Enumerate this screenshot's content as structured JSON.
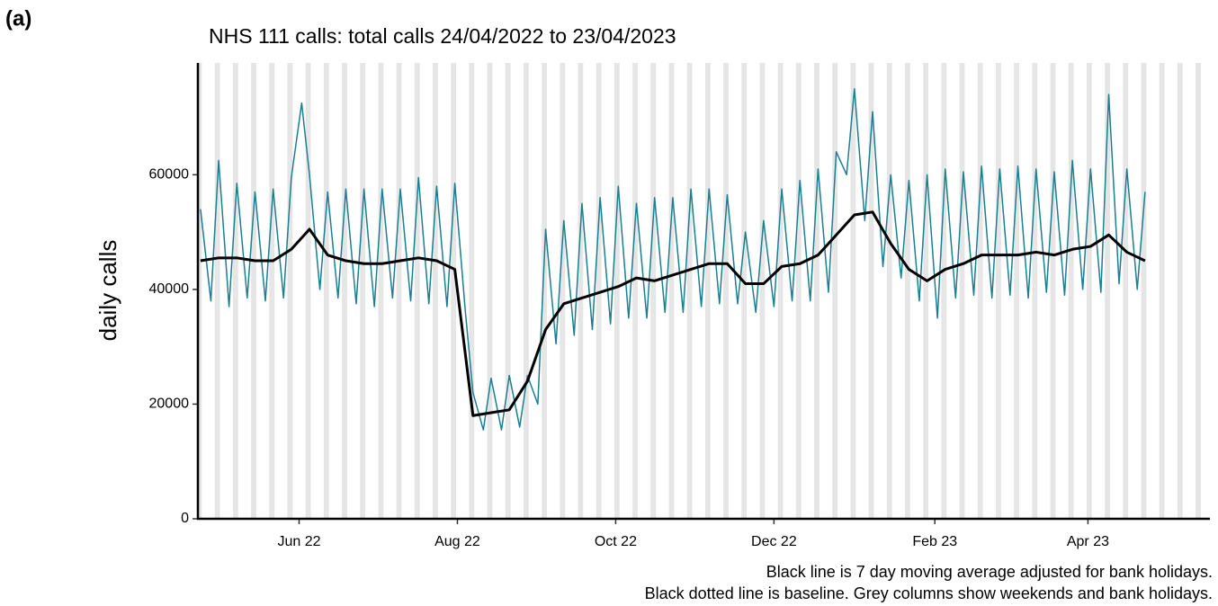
{
  "panel_label": "(a)",
  "chart_data": {
    "type": "line",
    "title": "NHS 111 calls: total calls 24/04/2022 to 23/04/2023",
    "ylabel": "daily calls",
    "caption": [
      "Black line is 7 day moving average adjusted for bank holidays.",
      "Black dotted line is baseline. Grey columns show weekends and bank holidays."
    ],
    "grid": false,
    "shade_weekends": true,
    "xlim": [
      "2022-04-23",
      "2023-05-18"
    ],
    "xticks": [
      {
        "value": "2022-06-01",
        "label": "Jun 22"
      },
      {
        "value": "2022-08-01",
        "label": "Aug 22"
      },
      {
        "value": "2022-10-01",
        "label": "Oct 22"
      },
      {
        "value": "2022-12-01",
        "label": "Dec 22"
      },
      {
        "value": "2023-02-01",
        "label": "Feb 23"
      },
      {
        "value": "2023-04-01",
        "label": "Apr 23"
      }
    ],
    "ylim": [
      0,
      79500
    ],
    "yticks": [
      0,
      20000,
      40000,
      60000
    ],
    "series": [
      {
        "color": "#1a7f92",
        "width": 1.5,
        "x": [
          "2022-04-24",
          "2022-04-28",
          "2022-05-01",
          "2022-05-05",
          "2022-05-08",
          "2022-05-12",
          "2022-05-15",
          "2022-05-19",
          "2022-05-22",
          "2022-05-26",
          "2022-05-29",
          "2022-06-02",
          "2022-06-05",
          "2022-06-09",
          "2022-06-12",
          "2022-06-16",
          "2022-06-19",
          "2022-06-23",
          "2022-06-26",
          "2022-06-30",
          "2022-07-03",
          "2022-07-07",
          "2022-07-10",
          "2022-07-14",
          "2022-07-17",
          "2022-07-21",
          "2022-07-24",
          "2022-07-28",
          "2022-07-31",
          "2022-08-04",
          "2022-08-07",
          "2022-08-11",
          "2022-08-14",
          "2022-08-18",
          "2022-08-21",
          "2022-08-25",
          "2022-08-28",
          "2022-09-01",
          "2022-09-04",
          "2022-09-08",
          "2022-09-11",
          "2022-09-15",
          "2022-09-18",
          "2022-09-22",
          "2022-09-25",
          "2022-09-29",
          "2022-10-02",
          "2022-10-06",
          "2022-10-09",
          "2022-10-13",
          "2022-10-16",
          "2022-10-20",
          "2022-10-23",
          "2022-10-27",
          "2022-10-30",
          "2022-11-03",
          "2022-11-06",
          "2022-11-10",
          "2022-11-13",
          "2022-11-17",
          "2022-11-20",
          "2022-11-24",
          "2022-11-27",
          "2022-12-01",
          "2022-12-04",
          "2022-12-08",
          "2022-12-11",
          "2022-12-15",
          "2022-12-18",
          "2022-12-22",
          "2022-12-25",
          "2022-12-29",
          "2023-01-01",
          "2023-01-05",
          "2023-01-08",
          "2023-01-12",
          "2023-01-15",
          "2023-01-19",
          "2023-01-22",
          "2023-01-26",
          "2023-01-29",
          "2023-02-02",
          "2023-02-05",
          "2023-02-09",
          "2023-02-12",
          "2023-02-16",
          "2023-02-19",
          "2023-02-23",
          "2023-02-26",
          "2023-03-02",
          "2023-03-05",
          "2023-03-09",
          "2023-03-12",
          "2023-03-16",
          "2023-03-19",
          "2023-03-23",
          "2023-03-26",
          "2023-03-30",
          "2023-04-02",
          "2023-04-06",
          "2023-04-09",
          "2023-04-13",
          "2023-04-16",
          "2023-04-20",
          "2023-04-23"
        ],
        "values": [
          54000,
          38000,
          62500,
          37000,
          58500,
          38500,
          57000,
          38000,
          57500,
          38500,
          59500,
          72500,
          60000,
          40000,
          57000,
          38500,
          57500,
          37500,
          57500,
          37000,
          57500,
          38500,
          57500,
          38000,
          59500,
          37500,
          58000,
          37000,
          58500,
          36500,
          22000,
          15500,
          24500,
          15500,
          25000,
          16000,
          25000,
          20000,
          50500,
          30500,
          52000,
          32000,
          55000,
          33000,
          56000,
          34000,
          58000,
          35000,
          55000,
          35000,
          56000,
          36000,
          56000,
          36000,
          57500,
          37000,
          57500,
          37500,
          56500,
          37500,
          50000,
          36000,
          52000,
          37000,
          57500,
          38000,
          59000,
          38000,
          61000,
          39500,
          64000,
          60000,
          75000,
          52000,
          71000,
          44000,
          60000,
          42000,
          59000,
          38000,
          60000,
          35000,
          61000,
          38500,
          60500,
          39000,
          61500,
          38500,
          61000,
          39000,
          61500,
          38500,
          61000,
          39500,
          60500,
          39000,
          62500,
          40000,
          61000,
          39500,
          74000,
          41000,
          61000,
          40000,
          57000
        ]
      },
      {
        "color": "#000000",
        "width": 3,
        "x": [
          "2022-04-24",
          "2022-05-01",
          "2022-05-08",
          "2022-05-15",
          "2022-05-22",
          "2022-05-29",
          "2022-06-05",
          "2022-06-12",
          "2022-06-19",
          "2022-06-26",
          "2022-07-03",
          "2022-07-10",
          "2022-07-17",
          "2022-07-24",
          "2022-07-31",
          "2022-08-07",
          "2022-08-14",
          "2022-08-21",
          "2022-08-28",
          "2022-09-04",
          "2022-09-11",
          "2022-09-18",
          "2022-09-25",
          "2022-10-02",
          "2022-10-09",
          "2022-10-16",
          "2022-10-23",
          "2022-10-30",
          "2022-11-06",
          "2022-11-13",
          "2022-11-20",
          "2022-11-27",
          "2022-12-04",
          "2022-12-11",
          "2022-12-18",
          "2022-12-25",
          "2023-01-01",
          "2023-01-08",
          "2023-01-15",
          "2023-01-22",
          "2023-01-29",
          "2023-02-05",
          "2023-02-12",
          "2023-02-19",
          "2023-02-26",
          "2023-03-05",
          "2023-03-12",
          "2023-03-19",
          "2023-03-26",
          "2023-04-02",
          "2023-04-09",
          "2023-04-16",
          "2023-04-23"
        ],
        "values": [
          45000,
          45500,
          45500,
          45000,
          45000,
          47000,
          50500,
          46000,
          45000,
          44500,
          44500,
          45000,
          45500,
          45000,
          43500,
          18000,
          18500,
          19000,
          24000,
          33000,
          37500,
          38500,
          39500,
          40500,
          42000,
          41500,
          42500,
          43500,
          44500,
          44500,
          41000,
          41000,
          44000,
          44500,
          46000,
          49500,
          53000,
          53500,
          48000,
          43500,
          41500,
          43500,
          44500,
          46000,
          46000,
          46000,
          46500,
          46000,
          47000,
          47500,
          49500,
          46500,
          45000
        ]
      }
    ]
  }
}
